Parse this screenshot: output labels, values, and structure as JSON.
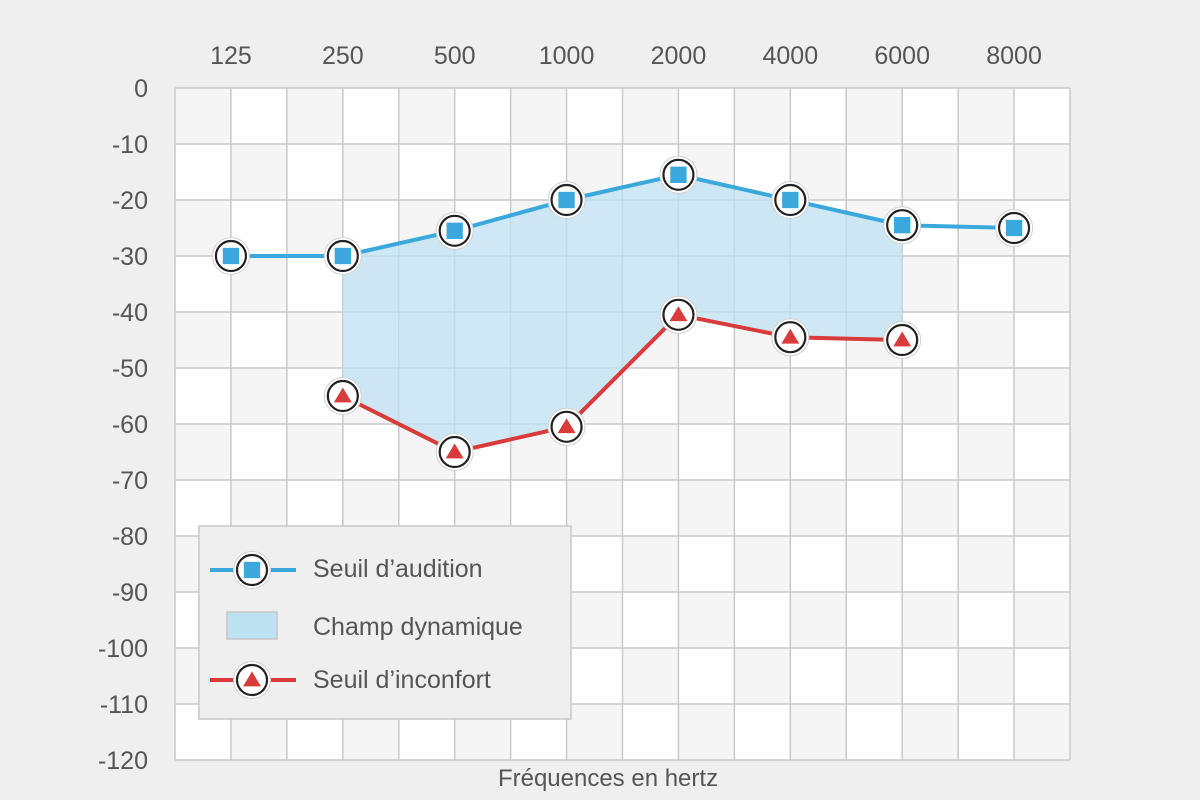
{
  "chart_data": {
    "type": "line",
    "xlabel": "Fréquences en hertz",
    "ylabel": "",
    "x": [
      "125",
      "250",
      "500",
      "1000",
      "2000",
      "4000",
      "6000",
      "8000"
    ],
    "y_ticks": [
      "0",
      "-10",
      "-20",
      "-30",
      "-40",
      "-50",
      "-60",
      "-70",
      "-80",
      "-90",
      "-100",
      "-110",
      "-120"
    ],
    "ylim": [
      -120,
      0
    ],
    "x_axis_position": "top",
    "grid": true,
    "series": [
      {
        "name": "Seuil d’audition",
        "marker": "square",
        "color": "#3aa8dc",
        "values": [
          -30,
          -30,
          -25.5,
          -20,
          -15.5,
          -20,
          -24.5,
          -25
        ]
      },
      {
        "name": "Seuil d’inconfort",
        "marker": "triangle",
        "color": "#d93a3a",
        "values": [
          null,
          -55,
          -65,
          -60.5,
          -40.5,
          -44.5,
          -45,
          null
        ]
      }
    ],
    "area": {
      "name": "Champ dynamique",
      "color": "#bde2f2",
      "between": [
        "Seuil d’audition",
        "Seuil d’inconfort"
      ]
    },
    "legend_placement": "bottom-left"
  }
}
